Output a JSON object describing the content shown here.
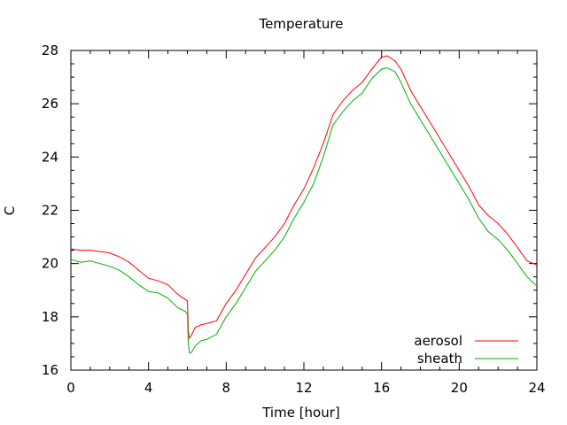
{
  "chart_data": {
    "type": "line",
    "title": "Temperature",
    "xlabel": "Time [hour]",
    "ylabel": "C",
    "xlim": [
      0,
      24
    ],
    "ylim": [
      16,
      28
    ],
    "xticks": [
      0,
      4,
      8,
      12,
      16,
      20,
      24
    ],
    "yticks": [
      16,
      18,
      20,
      22,
      24,
      26,
      28
    ],
    "grid": false,
    "legend_position": "bottom-right",
    "series": [
      {
        "name": "aerosol",
        "color": "#ff0000",
        "x": [
          0,
          0.5,
          1,
          1.5,
          2,
          2.5,
          3,
          3.5,
          4,
          4.5,
          5,
          5.5,
          5.9,
          6.0,
          6.05,
          6.1,
          6.2,
          6.4,
          6.7,
          7.0,
          7.5,
          8.0,
          8.5,
          9.0,
          9.5,
          10.0,
          10.5,
          11.0,
          11.5,
          12.0,
          12.5,
          13.0,
          13.5,
          14.0,
          14.5,
          15.0,
          15.5,
          16.0,
          16.3,
          16.7,
          17.0,
          17.5,
          18.0,
          18.5,
          19.0,
          19.5,
          20.0,
          20.5,
          21.0,
          21.5,
          22.0,
          22.5,
          23.0,
          23.5,
          24.0
        ],
        "y": [
          20.55,
          20.5,
          20.5,
          20.45,
          20.4,
          20.25,
          20.05,
          19.75,
          19.45,
          19.35,
          19.2,
          18.85,
          18.65,
          18.6,
          17.5,
          17.2,
          17.3,
          17.6,
          17.7,
          17.75,
          17.85,
          18.5,
          19.0,
          19.6,
          20.2,
          20.6,
          21.0,
          21.5,
          22.2,
          22.8,
          23.6,
          24.5,
          25.6,
          26.1,
          26.5,
          26.8,
          27.3,
          27.75,
          27.8,
          27.6,
          27.3,
          26.5,
          25.9,
          25.3,
          24.7,
          24.1,
          23.5,
          22.9,
          22.2,
          21.8,
          21.5,
          21.1,
          20.6,
          20.1,
          19.95
        ]
      },
      {
        "name": "sheath",
        "color": "#00b000",
        "x": [
          0,
          0.5,
          1,
          1.5,
          2,
          2.5,
          3,
          3.5,
          4,
          4.5,
          5,
          5.5,
          5.9,
          6.0,
          6.05,
          6.1,
          6.2,
          6.4,
          6.7,
          7.0,
          7.5,
          8.0,
          8.5,
          9.0,
          9.5,
          10.0,
          10.5,
          11.0,
          11.5,
          12.0,
          12.5,
          13.0,
          13.5,
          14.0,
          14.5,
          15.0,
          15.5,
          16.0,
          16.3,
          16.7,
          17.0,
          17.5,
          18.0,
          18.5,
          19.0,
          19.5,
          20.0,
          20.5,
          21.0,
          21.5,
          22.0,
          22.5,
          23.0,
          23.5,
          24.0
        ],
        "y": [
          20.15,
          20.05,
          20.1,
          20.0,
          19.9,
          19.75,
          19.5,
          19.2,
          18.95,
          18.9,
          18.7,
          18.35,
          18.2,
          18.1,
          17.0,
          16.65,
          16.65,
          16.9,
          17.1,
          17.15,
          17.35,
          18.0,
          18.5,
          19.1,
          19.7,
          20.1,
          20.5,
          21.0,
          21.7,
          22.3,
          23.0,
          24.0,
          25.2,
          25.7,
          26.1,
          26.4,
          26.95,
          27.3,
          27.35,
          27.2,
          26.8,
          26.0,
          25.4,
          24.8,
          24.2,
          23.6,
          23.0,
          22.4,
          21.7,
          21.2,
          20.9,
          20.5,
          20.0,
          19.5,
          19.15
        ]
      }
    ]
  }
}
